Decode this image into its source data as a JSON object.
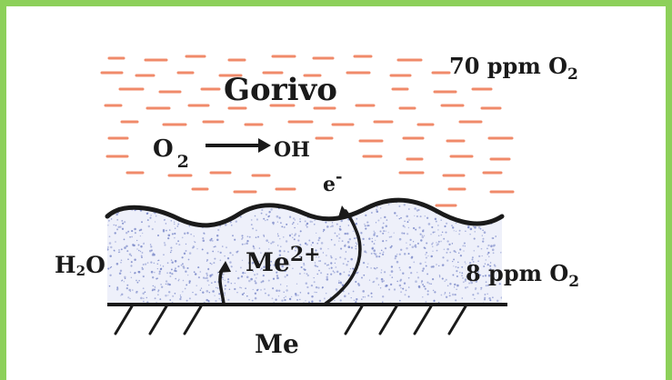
{
  "diagram": {
    "fuel_label": "Gorivo",
    "fuel_oxygen": {
      "value": "70 ppm O",
      "subscript": "2"
    },
    "reaction": {
      "reactant": "O",
      "reactant_subscript": "2",
      "product": "OH"
    },
    "electron": {
      "symbol": "e",
      "charge": "-"
    },
    "water_label": {
      "before": "H",
      "subscript": "2",
      "after": "O"
    },
    "ion": {
      "symbol": "Me",
      "charge": "2+"
    },
    "water_oxygen": {
      "value": "8 ppm O",
      "subscript": "2"
    },
    "metal_label": "Me",
    "colors": {
      "frame": "#8dd05a",
      "fuel_dash": "#f08a6a",
      "water_dots": "#7a88c8",
      "ink": "#1a1a1a"
    }
  }
}
